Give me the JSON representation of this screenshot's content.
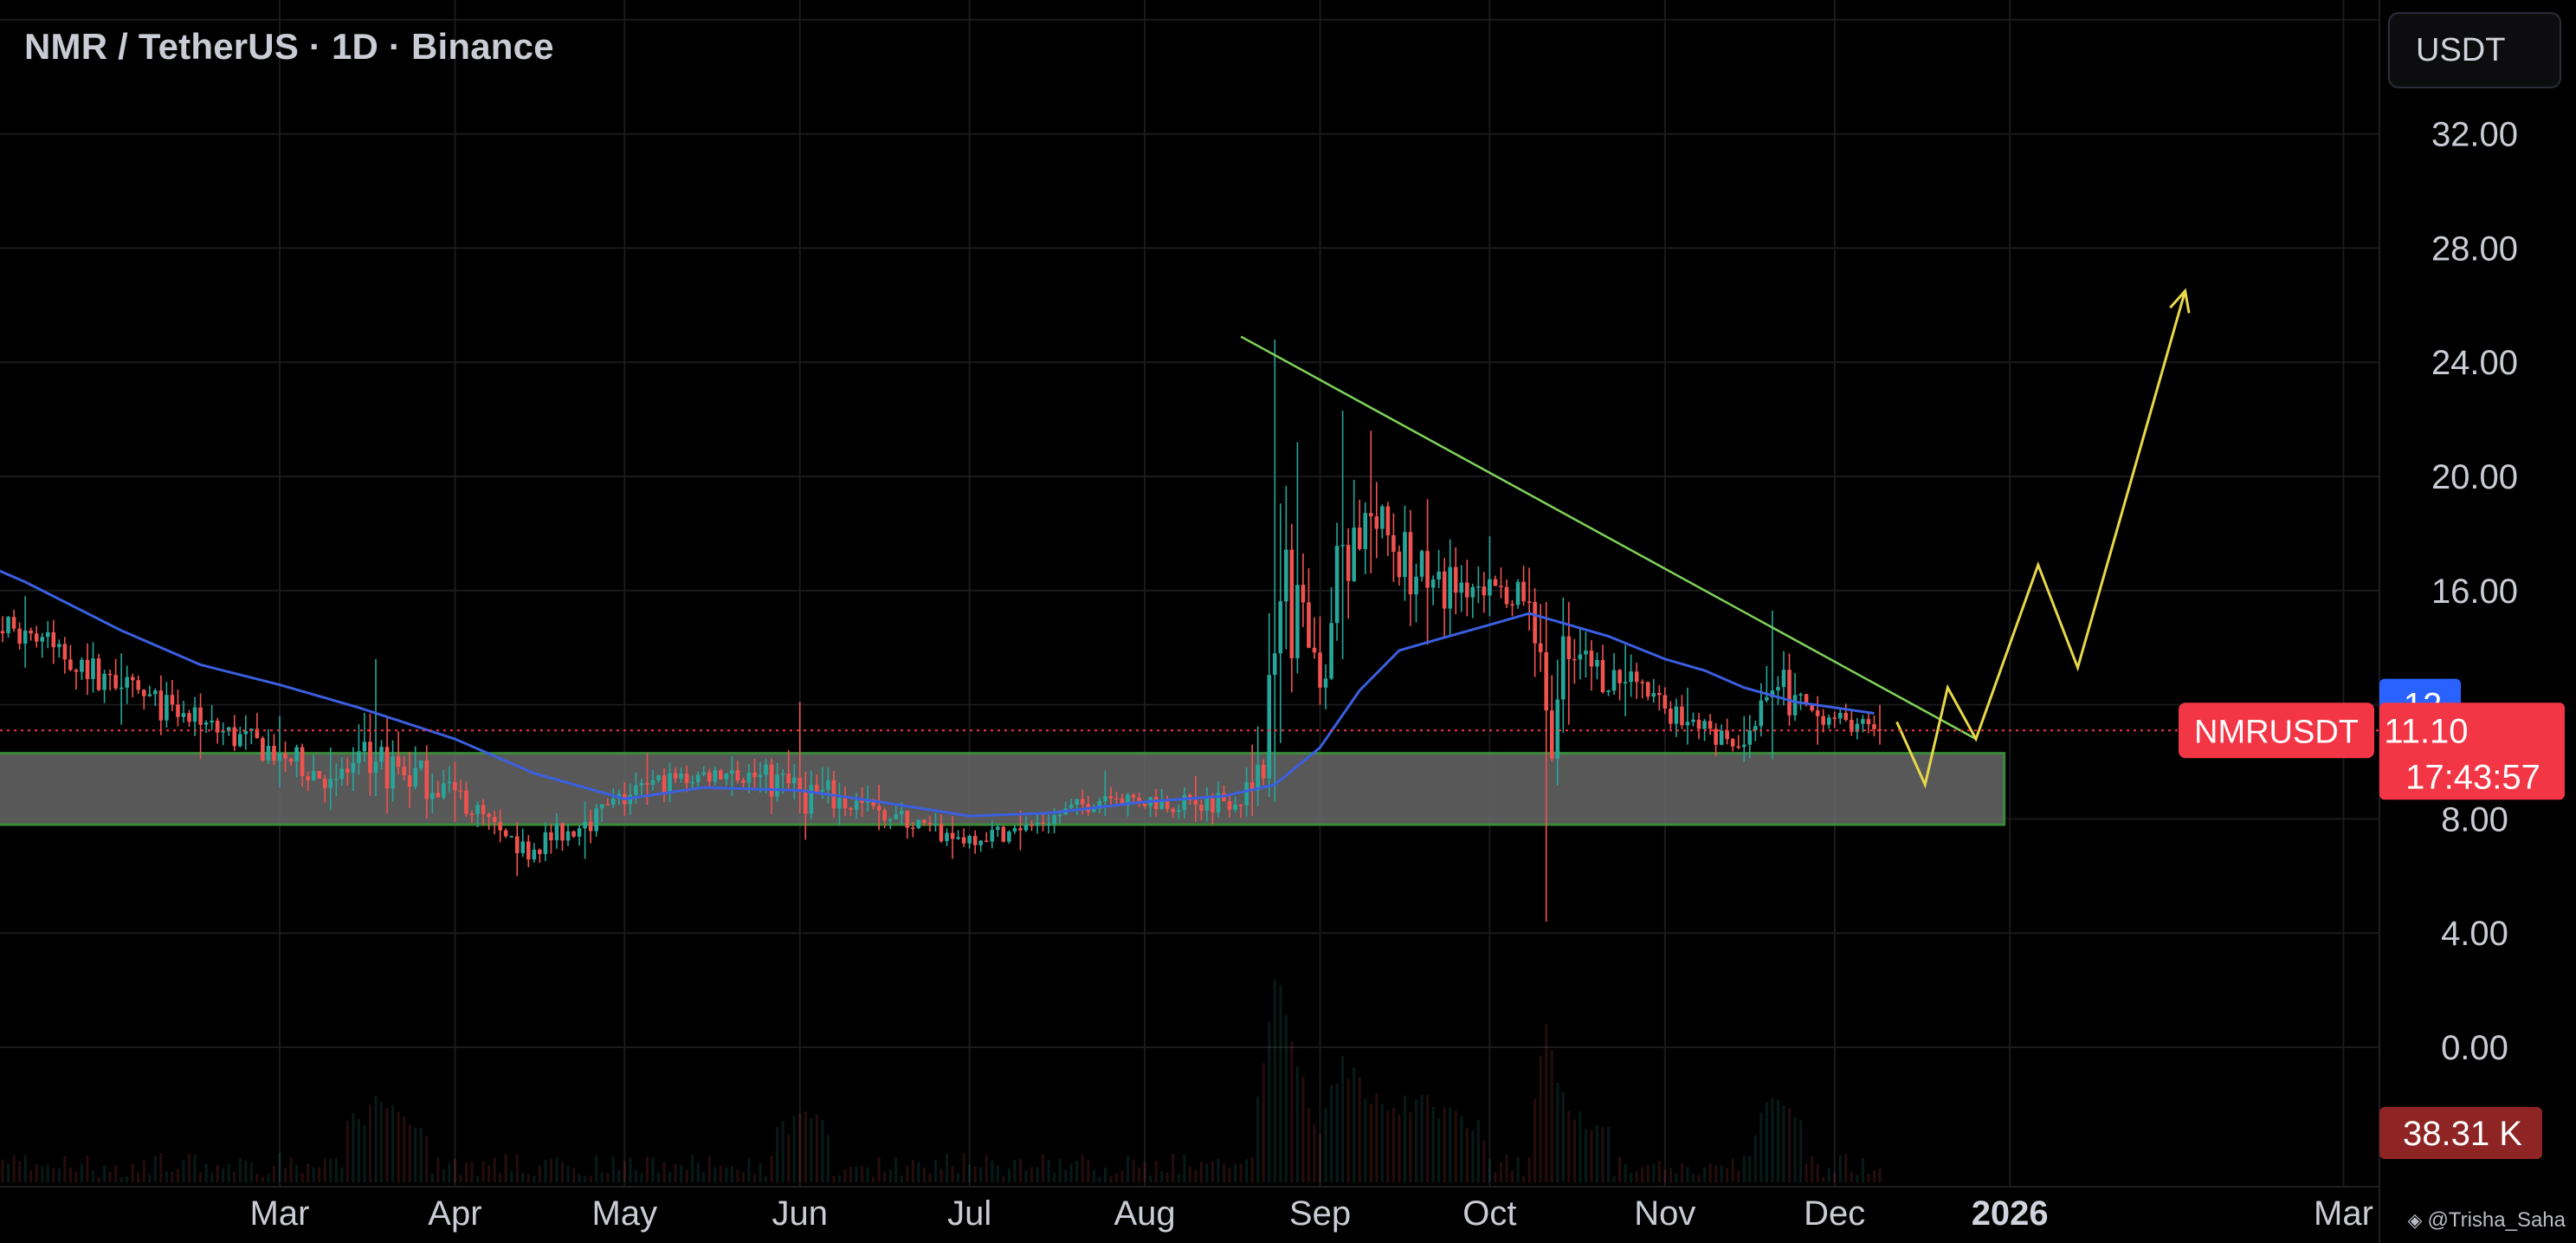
{
  "header": {
    "title": "NMR / TetherUS · 1D · Binance",
    "currency_button": "USDT"
  },
  "watermark": {
    "text": "@Trisha_Saha",
    "icon": "logo-icon"
  },
  "colors": {
    "background": "#000000",
    "up": "#26a69a",
    "down": "#ef5350",
    "ma": "#3b5fe0",
    "trendline": "#7fd35a",
    "projection": "#e8d84a",
    "zone_fill": "#6b6b6b",
    "zone_border": "#3a8a3a",
    "price_badge": "#f23645",
    "ma_badge": "#2962ff",
    "volume_badge": "#8e2424"
  },
  "chart_data": {
    "type": "candlestick",
    "symbol": "NMRUSDT",
    "timeframe": "1D",
    "x_ticks": [
      "Mar",
      "Apr",
      "May",
      "Jun",
      "Jul",
      "Aug",
      "Sep",
      "Oct",
      "Nov",
      "Dec",
      "2026",
      "Mar"
    ],
    "y_ticks": [
      "32.00",
      "28.00",
      "24.00",
      "20.00",
      "16.00",
      "8.00",
      "4.00",
      "0.00"
    ],
    "ylim": [
      -2.3,
      36.0
    ],
    "xlim": [
      "2025-01-01",
      "2026-03-26"
    ],
    "grid": true,
    "last_price": {
      "label": "NMRUSDT",
      "value": "11.10",
      "countdown": "17:43:57",
      "price": 11.1
    },
    "ma_label": {
      "value": "12",
      "price": 12.0
    },
    "volume_label": {
      "value": "38.31 K"
    },
    "support_zone": {
      "from": "2025-01-07",
      "to": "2025-12-31",
      "low": 7.8,
      "high": 10.3
    },
    "trendline": [
      {
        "date": "2025-08-18",
        "price": 24.9
      },
      {
        "date": "2025-12-26",
        "price": 10.8
      }
    ],
    "projection": [
      {
        "date": "2025-12-12",
        "price": 11.4
      },
      {
        "date": "2025-12-17",
        "price": 9.2
      },
      {
        "date": "2025-12-21",
        "price": 12.6
      },
      {
        "date": "2025-12-26",
        "price": 10.8
      },
      {
        "date": "2026-01-06",
        "price": 16.9
      },
      {
        "date": "2026-01-13",
        "price": 13.3
      },
      {
        "date": "2026-02-01",
        "price": 26.5
      }
    ],
    "ma_series": [
      {
        "date": "2025-01-01",
        "price": 17.5
      },
      {
        "date": "2025-01-15",
        "price": 16.3
      },
      {
        "date": "2025-02-01",
        "price": 14.6
      },
      {
        "date": "2025-02-15",
        "price": 13.4
      },
      {
        "date": "2025-03-01",
        "price": 12.7
      },
      {
        "date": "2025-03-15",
        "price": 11.9
      },
      {
        "date": "2025-04-01",
        "price": 10.8
      },
      {
        "date": "2025-04-15",
        "price": 9.6
      },
      {
        "date": "2025-05-01",
        "price": 8.7
      },
      {
        "date": "2025-05-15",
        "price": 9.1
      },
      {
        "date": "2025-06-01",
        "price": 9.0
      },
      {
        "date": "2025-06-15",
        "price": 8.6
      },
      {
        "date": "2025-07-01",
        "price": 8.1
      },
      {
        "date": "2025-07-15",
        "price": 8.2
      },
      {
        "date": "2025-08-01",
        "price": 8.6
      },
      {
        "date": "2025-08-15",
        "price": 8.8
      },
      {
        "date": "2025-08-24",
        "price": 9.2
      },
      {
        "date": "2025-09-01",
        "price": 10.5
      },
      {
        "date": "2025-09-08",
        "price": 12.5
      },
      {
        "date": "2025-09-15",
        "price": 13.9
      },
      {
        "date": "2025-09-22",
        "price": 14.3
      },
      {
        "date": "2025-10-01",
        "price": 14.8
      },
      {
        "date": "2025-10-08",
        "price": 15.2
      },
      {
        "date": "2025-10-15",
        "price": 14.8
      },
      {
        "date": "2025-10-22",
        "price": 14.4
      },
      {
        "date": "2025-11-01",
        "price": 13.6
      },
      {
        "date": "2025-11-08",
        "price": 13.2
      },
      {
        "date": "2025-11-15",
        "price": 12.6
      },
      {
        "date": "2025-11-24",
        "price": 12.1
      },
      {
        "date": "2025-12-01",
        "price": 11.9
      },
      {
        "date": "2025-12-08",
        "price": 11.7
      }
    ],
    "ohlc_keypoints": [
      {
        "date": "2025-01-01",
        "close": 15.0,
        "high": 15.7,
        "low": 14.1
      },
      {
        "date": "2025-01-15",
        "close": 14.6,
        "high": 15.8,
        "low": 13.3
      },
      {
        "date": "2025-02-01",
        "close": 12.6,
        "high": 13.8,
        "low": 11.3
      },
      {
        "date": "2025-02-15",
        "close": 11.3,
        "high": 12.4,
        "low": 10.1
      },
      {
        "date": "2025-03-01",
        "close": 10.3,
        "high": 11.6,
        "low": 9.1
      },
      {
        "date": "2025-03-10",
        "close": 9.4,
        "high": 10.5,
        "low": 8.3
      },
      {
        "date": "2025-03-18",
        "close": 10.0,
        "high": 13.6,
        "low": 8.8
      },
      {
        "date": "2025-04-01",
        "close": 9.0,
        "high": 10.0,
        "low": 7.9
      },
      {
        "date": "2025-04-12",
        "close": 6.8,
        "high": 7.9,
        "low": 6.0
      },
      {
        "date": "2025-04-24",
        "close": 7.9,
        "high": 8.6,
        "low": 6.6
      },
      {
        "date": "2025-05-05",
        "close": 9.2,
        "high": 10.3,
        "low": 8.5
      },
      {
        "date": "2025-05-20",
        "close": 9.7,
        "high": 10.2,
        "low": 8.8
      },
      {
        "date": "2025-06-01",
        "close": 9.0,
        "high": 12.1,
        "low": 8.2
      },
      {
        "date": "2025-06-15",
        "close": 8.3,
        "high": 9.2,
        "low": 7.6
      },
      {
        "date": "2025-06-28",
        "close": 7.3,
        "high": 8.1,
        "low": 6.6
      },
      {
        "date": "2025-07-10",
        "close": 7.6,
        "high": 8.3,
        "low": 6.9
      },
      {
        "date": "2025-07-25",
        "close": 8.8,
        "high": 9.7,
        "low": 8.1
      },
      {
        "date": "2025-08-10",
        "close": 8.5,
        "high": 9.5,
        "low": 7.9
      },
      {
        "date": "2025-08-20",
        "close": 9.0,
        "high": 10.6,
        "low": 8.1
      },
      {
        "date": "2025-08-24",
        "close": 13.8,
        "high": 24.8,
        "low": 8.6
      },
      {
        "date": "2025-08-28",
        "close": 16.2,
        "high": 21.2,
        "low": 13.1
      },
      {
        "date": "2025-09-01",
        "close": 12.6,
        "high": 15.1,
        "low": 12.0
      },
      {
        "date": "2025-09-05",
        "close": 17.6,
        "high": 22.3,
        "low": 13.6
      },
      {
        "date": "2025-09-10",
        "close": 18.6,
        "high": 21.6,
        "low": 16.6
      },
      {
        "date": "2025-09-20",
        "close": 16.1,
        "high": 19.2,
        "low": 14.1
      },
      {
        "date": "2025-10-01",
        "close": 16.4,
        "high": 17.9,
        "low": 15.1
      },
      {
        "date": "2025-10-08",
        "close": 15.6,
        "high": 16.8,
        "low": 14.6
      },
      {
        "date": "2025-10-11",
        "close": 11.8,
        "high": 15.6,
        "low": 4.4
      },
      {
        "date": "2025-10-15",
        "close": 13.6,
        "high": 15.6,
        "low": 11.3
      },
      {
        "date": "2025-10-25",
        "close": 12.8,
        "high": 14.1,
        "low": 11.6
      },
      {
        "date": "2025-11-05",
        "close": 11.4,
        "high": 12.6,
        "low": 10.6
      },
      {
        "date": "2025-11-15",
        "close": 10.6,
        "high": 11.6,
        "low": 10.0
      },
      {
        "date": "2025-11-20",
        "close": 12.5,
        "high": 15.3,
        "low": 10.1
      },
      {
        "date": "2025-11-28",
        "close": 11.6,
        "high": 12.3,
        "low": 10.6
      },
      {
        "date": "2025-12-09",
        "close": 11.1,
        "high": 12.0,
        "low": 10.6
      }
    ]
  }
}
